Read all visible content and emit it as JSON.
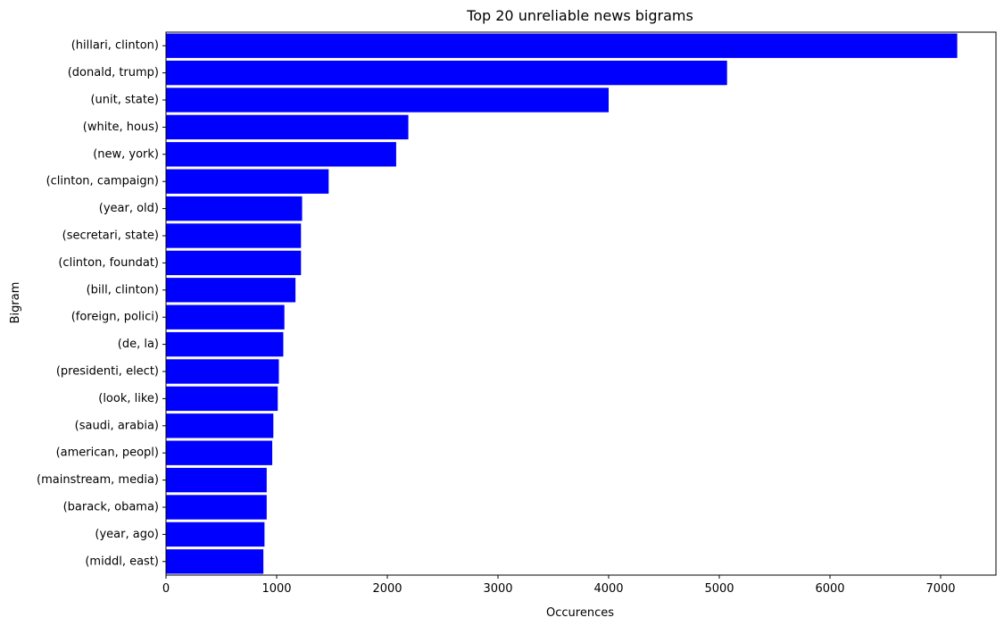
{
  "chart_data": {
    "type": "bar",
    "orientation": "horizontal",
    "title": "Top 20 unreliable news bigrams",
    "xlabel": "Occurences",
    "ylabel": "Bigram",
    "xlim": [
      0,
      7500
    ],
    "xticks": [
      0,
      1000,
      2000,
      3000,
      4000,
      5000,
      6000,
      7000
    ],
    "grid": false,
    "bar_color": "#0000ff",
    "categories": [
      "(hillari, clinton)",
      "(donald, trump)",
      "(unit, state)",
      "(white, hous)",
      "(new, york)",
      "(clinton, campaign)",
      "(year, old)",
      "(secretari, state)",
      "(clinton, foundat)",
      "(bill, clinton)",
      "(foreign, polici)",
      "(de, la)",
      "(presidenti, elect)",
      "(look, like)",
      "(saudi, arabia)",
      "(american, peopl)",
      "(mainstream, media)",
      "(barack, obama)",
      "(year, ago)",
      "(middl, east)"
    ],
    "values": [
      7150,
      5070,
      4000,
      2190,
      2080,
      1470,
      1230,
      1220,
      1220,
      1170,
      1070,
      1060,
      1020,
      1010,
      970,
      960,
      910,
      910,
      890,
      880
    ]
  }
}
